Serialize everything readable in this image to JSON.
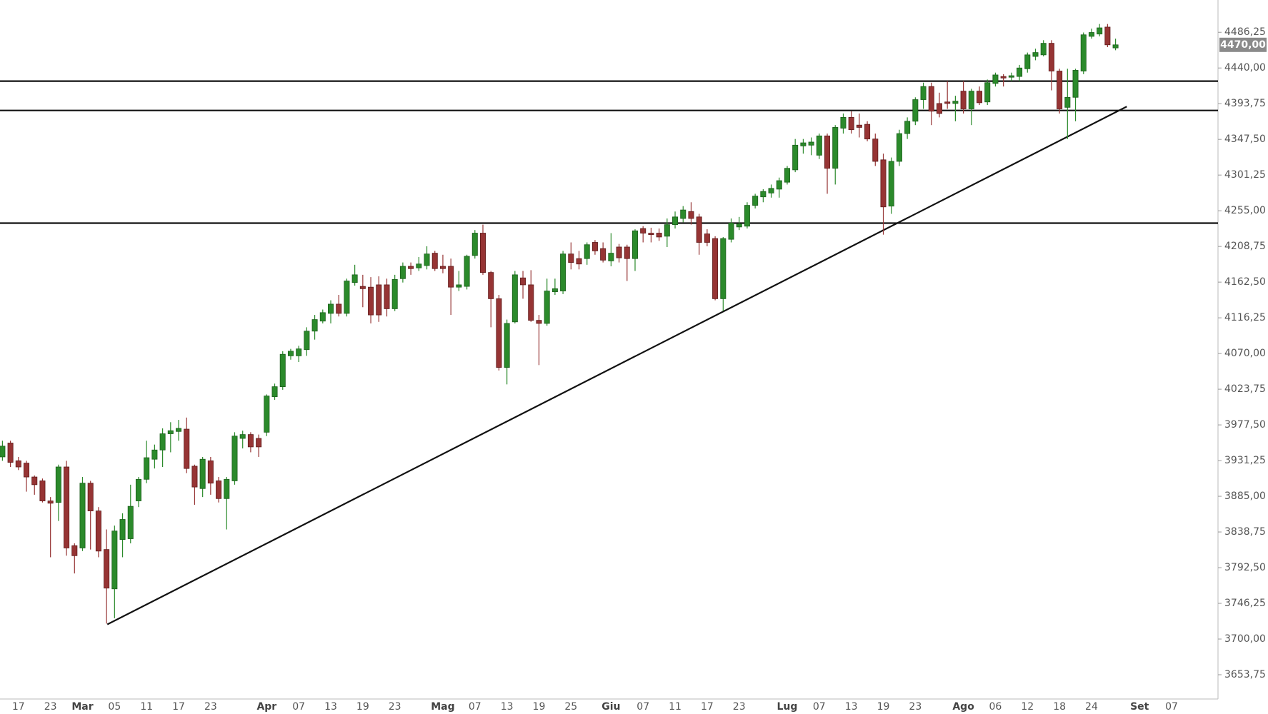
{
  "chart_data": {
    "type": "candlestick",
    "up_color": "#2b8a2b",
    "down_color": "#963434",
    "line_color": "#111111",
    "ylim": [
      3622.3,
      4528.1
    ],
    "yticks": [
      {
        "value": 3653.75,
        "label": "3653,75"
      },
      {
        "value": 3700,
        "label": "3700,00"
      },
      {
        "value": 3746.25,
        "label": "3746,25"
      },
      {
        "value": 3792.5,
        "label": "3792,50"
      },
      {
        "value": 3838.75,
        "label": "3838,75"
      },
      {
        "value": 3885,
        "label": "3885,00"
      },
      {
        "value": 3931.25,
        "label": "3931,25"
      },
      {
        "value": 3977.5,
        "label": "3977,50"
      },
      {
        "value": 4023.75,
        "label": "4023,75"
      },
      {
        "value": 4070,
        "label": "4070,00"
      },
      {
        "value": 4116.25,
        "label": "4116,25"
      },
      {
        "value": 4162.5,
        "label": "4162,50"
      },
      {
        "value": 4208.75,
        "label": "4208,75"
      },
      {
        "value": 4255,
        "label": "4255,00"
      },
      {
        "value": 4301.25,
        "label": "4301,25"
      },
      {
        "value": 4347.5,
        "label": "4347,50"
      },
      {
        "value": 4393.75,
        "label": "4393,75"
      },
      {
        "value": 4440,
        "label": "4440,00"
      },
      {
        "value": 4486.25,
        "label": "4486,25"
      }
    ],
    "last_price": {
      "value": 4470,
      "label": "4470,00"
    },
    "categories": [
      null,
      null,
      "17",
      null,
      null,
      null,
      "23",
      null,
      null,
      null,
      "Mar",
      null,
      null,
      null,
      "05",
      null,
      null,
      null,
      "11",
      null,
      null,
      null,
      "17",
      null,
      null,
      null,
      "23",
      null,
      null,
      null,
      null,
      null,
      null,
      "Apr",
      null,
      null,
      null,
      "07",
      null,
      null,
      null,
      "13",
      null,
      null,
      null,
      "19",
      null,
      null,
      null,
      "23",
      null,
      null,
      null,
      null,
      null,
      "Mag",
      null,
      null,
      null,
      "07",
      null,
      null,
      null,
      "13",
      null,
      null,
      null,
      "19",
      null,
      null,
      null,
      "25",
      null,
      null,
      null,
      null,
      "Giu",
      null,
      null,
      null,
      "07",
      null,
      null,
      null,
      "11",
      null,
      null,
      null,
      "17",
      null,
      null,
      null,
      "23",
      null,
      null,
      null,
      null,
      null,
      "Lug",
      null,
      null,
      null,
      "07",
      null,
      null,
      null,
      "13",
      null,
      null,
      null,
      "19",
      null,
      null,
      null,
      "23",
      null,
      null,
      null,
      null,
      null,
      "Ago",
      null,
      null,
      null,
      "06",
      null,
      null,
      null,
      "12",
      null,
      null,
      null,
      "18",
      null,
      null,
      null,
      "24",
      null,
      null,
      null,
      null,
      null,
      "Set",
      null,
      null,
      null,
      "07"
    ],
    "open": [
      3936,
      3954,
      3931,
      3928,
      3910,
      3905,
      3879,
      3877,
      3923,
      3821,
      3818,
      3902,
      3866,
      3816,
      3765,
      3829,
      3830,
      3879,
      3907,
      3933,
      3945,
      3966,
      3969,
      3972,
      3924,
      3895,
      3931,
      3905,
      3882,
      3905,
      3960,
      3965,
      3960,
      3968,
      4014,
      4027,
      4067,
      4067,
      4075,
      4099,
      4112,
      4122,
      4134,
      4122,
      4162,
      4157,
      4156,
      4159,
      4159,
      4128,
      4167,
      4183,
      4181,
      4184,
      4200,
      4183,
      4183,
      4156,
      4157,
      4197,
      4226,
      4175,
      4141,
      4052,
      4111,
      4168,
      4159,
      4113,
      4109,
      4150,
      4151,
      4199,
      4193,
      4193,
      4214,
      4206,
      4190,
      4208,
      4208,
      4193,
      4232,
      4226,
      4226,
      4222,
      4237,
      4245,
      4254,
      4247,
      4225,
      4219,
      4141,
      4218,
      4234,
      4235,
      4262,
      4273,
      4278,
      4283,
      4292,
      4308,
      4339,
      4340,
      4327,
      4352,
      4310,
      4362,
      4376,
      4366,
      4367,
      4348,
      4321,
      4261,
      4319,
      4355,
      4371,
      4399,
      4416,
      4394,
      4396,
      4394,
      4410,
      4387,
      4410,
      4396,
      4420,
      4429,
      4428,
      4429,
      4439,
      4455,
      4457,
      4472,
      4436,
      4389,
      4402,
      4436,
      4481,
      4484,
      4493,
      4466,
      null,
      null,
      null,
      null,
      null,
      null,
      null
    ],
    "high": [
      3957,
      3957,
      3936,
      3931,
      3912,
      3908,
      3884,
      3926,
      3931,
      3824,
      3910,
      3905,
      3871,
      3842,
      3847,
      3863,
      3900,
      3910,
      3957,
      3952,
      3973,
      3981,
      3984,
      3987,
      3926,
      3936,
      3936,
      3910,
      3910,
      3968,
      3970,
      3968,
      3965,
      4017,
      4031,
      4073,
      4076,
      4080,
      4104,
      4120,
      4127,
      4139,
      4146,
      4167,
      4185,
      4172,
      4169,
      4170,
      4167,
      4172,
      4188,
      4188,
      4195,
      4209,
      4203,
      4198,
      4193,
      4177,
      4198,
      4230,
      4237,
      4177,
      4146,
      4114,
      4177,
      4177,
      4178,
      4120,
      4167,
      4167,
      4203,
      4214,
      4203,
      4214,
      4217,
      4214,
      4226,
      4212,
      4211,
      4231,
      4235,
      4233,
      4232,
      4245,
      4254,
      4261,
      4266,
      4251,
      4231,
      4222,
      4221,
      4245,
      4247,
      4266,
      4277,
      4283,
      4289,
      4298,
      4313,
      4348,
      4348,
      4350,
      4355,
      4355,
      4366,
      4381,
      4384,
      4381,
      4371,
      4355,
      4329,
      4324,
      4360,
      4376,
      4402,
      4421,
      4421,
      4408,
      4423,
      4404,
      4423,
      4413,
      4416,
      4425,
      4434,
      4432,
      4434,
      4444,
      4460,
      4465,
      4476,
      4476,
      4439,
      4439,
      4439,
      4486,
      4491,
      4497,
      4497,
      4478,
      null,
      null,
      null,
      null,
      null,
      null,
      null
    ],
    "low": [
      3931,
      3923,
      3919,
      3891,
      3887,
      3877,
      3806,
      3853,
      3808,
      3785,
      3814,
      3816,
      3806,
      3720,
      3727,
      3806,
      3824,
      3871,
      3902,
      3921,
      3923,
      3942,
      3957,
      3915,
      3874,
      3884,
      3887,
      3877,
      3842,
      3900,
      3947,
      3942,
      3936,
      3963,
      4010,
      4023,
      4062,
      4059,
      4067,
      4088,
      4109,
      4109,
      4118,
      4118,
      4158,
      4130,
      4109,
      4111,
      4118,
      4125,
      4162,
      4172,
      4177,
      4179,
      4177,
      4174,
      4120,
      4151,
      4153,
      4193,
      4172,
      4104,
      4048,
      4030,
      4109,
      4141,
      4111,
      4055,
      4106,
      4146,
      4147,
      4179,
      4179,
      4185,
      4198,
      4188,
      4183,
      4188,
      4164,
      4177,
      4214,
      4214,
      4216,
      4208,
      4232,
      4240,
      4237,
      4198,
      4209,
      4139,
      4125,
      4214,
      4230,
      4232,
      4258,
      4266,
      4272,
      4272,
      4289,
      4305,
      4329,
      4327,
      4322,
      4277,
      4289,
      4355,
      4355,
      4350,
      4345,
      4313,
      4224,
      4251,
      4313,
      4348,
      4366,
      4387,
      4366,
      4376,
      4387,
      4371,
      4381,
      4366,
      4392,
      4392,
      4416,
      4416,
      4423,
      4423,
      4434,
      4450,
      4455,
      4411,
      4381,
      4348,
      4371,
      4432,
      4478,
      4481,
      4467,
      4463,
      null,
      null,
      null,
      null,
      null,
      null,
      null
    ],
    "close": [
      3950,
      3929,
      3923,
      3910,
      3900,
      3879,
      3876,
      3923,
      3818,
      3808,
      3902,
      3866,
      3814,
      3766,
      3840,
      3855,
      3872,
      3907,
      3935,
      3945,
      3966,
      3970,
      3973,
      3921,
      3897,
      3933,
      3902,
      3882,
      3907,
      3963,
      3965,
      3949,
      3949,
      4015,
      4027,
      4069,
      4073,
      4076,
      4099,
      4114,
      4123,
      4134,
      4122,
      4164,
      4172,
      4154,
      4120,
      4120,
      4128,
      4166,
      4183,
      4180,
      4186,
      4199,
      4180,
      4180,
      4156,
      4159,
      4196,
      4226,
      4175,
      4141,
      4052,
      4109,
      4172,
      4159,
      4113,
      4109,
      4151,
      4154,
      4199,
      4188,
      4186,
      4211,
      4203,
      4191,
      4200,
      4194,
      4193,
      4229,
      4226,
      4224,
      4221,
      4237,
      4247,
      4256,
      4245,
      4214,
      4214,
      4141,
      4219,
      4239,
      4238,
      4262,
      4274,
      4280,
      4284,
      4294,
      4310,
      4340,
      4343,
      4344,
      4352,
      4310,
      4363,
      4376,
      4360,
      4363,
      4348,
      4319,
      4260,
      4319,
      4355,
      4371,
      4399,
      4416,
      4384,
      4381,
      4394,
      4397,
      4387,
      4410,
      4395,
      4421,
      4431,
      4427,
      4430,
      4440,
      4457,
      4460,
      4472,
      4436,
      4387,
      4402,
      4437,
      4483,
      4486,
      4492,
      4470,
      4470,
      null,
      null,
      null,
      null,
      null,
      null,
      null
    ],
    "hlines": [
      4423,
      4385,
      4239
    ],
    "trendline": {
      "x": [
        13.1,
        140.4
      ],
      "y": [
        3719,
        4390
      ]
    }
  }
}
